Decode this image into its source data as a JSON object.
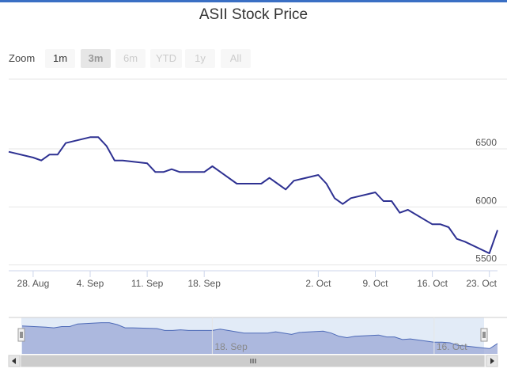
{
  "title": "ASII Stock Price",
  "zoom": {
    "label": "Zoom",
    "buttons": [
      "1m",
      "3m",
      "6m",
      "YTD",
      "1y",
      "All"
    ],
    "selected": "3m"
  },
  "colors": {
    "line": "#2e3192",
    "navigator_fill": "#9aa7d6",
    "navigator_line": "#4d6ab8",
    "navigator_mask": "#dbe6f5",
    "accent": "#3a6fc4"
  },
  "chart_data": {
    "type": "line",
    "title": "ASII Stock Price",
    "xlabel": "",
    "ylabel": "",
    "ylim": [
      5450,
      7100
    ],
    "yticks": [
      5500,
      6000,
      6500
    ],
    "ytick_labels": [
      "5500",
      "6000",
      "6500"
    ],
    "xticks": [
      "2017-08-28",
      "2017-09-04",
      "2017-09-11",
      "2017-09-18",
      "2017-10-02",
      "2017-10-09",
      "2017-10-16",
      "2017-10-23"
    ],
    "xtick_labels": [
      "28. Aug",
      "4. Sep",
      "11. Sep",
      "18. Sep",
      "2. Oct",
      "9. Oct",
      "16. Oct",
      "23. Oct"
    ],
    "grid": true,
    "legend": "none",
    "series": [
      {
        "x": [
          "2017-08-25",
          "2017-08-28",
          "2017-08-29",
          "2017-08-30",
          "2017-08-31",
          "2017-09-01",
          "2017-09-04",
          "2017-09-05",
          "2017-09-06",
          "2017-09-07",
          "2017-09-08",
          "2017-09-11",
          "2017-09-12",
          "2017-09-13",
          "2017-09-14",
          "2017-09-15",
          "2017-09-18",
          "2017-09-19",
          "2017-09-20",
          "2017-09-22",
          "2017-09-25",
          "2017-09-26",
          "2017-09-27",
          "2017-09-28",
          "2017-09-29",
          "2017-10-02",
          "2017-10-03",
          "2017-10-04",
          "2017-10-05",
          "2017-10-06",
          "2017-10-09",
          "2017-10-10",
          "2017-10-11",
          "2017-10-12",
          "2017-10-13",
          "2017-10-16",
          "2017-10-17",
          "2017-10-18",
          "2017-10-19",
          "2017-10-20",
          "2017-10-23",
          "2017-10-24"
        ],
        "values": [
          6475,
          6425,
          6400,
          6450,
          6450,
          6550,
          6600,
          6600,
          6525,
          6400,
          6400,
          6375,
          6300,
          6300,
          6325,
          6300,
          6300,
          6350,
          6300,
          6200,
          6200,
          6250,
          6200,
          6150,
          6225,
          6275,
          6200,
          6075,
          6025,
          6075,
          6125,
          6050,
          6050,
          5950,
          5975,
          5850,
          5850,
          5825,
          5725,
          5700,
          5600,
          5800
        ]
      }
    ],
    "navigator": {
      "xtick_labels": [
        "18. Sep",
        "16. Oct"
      ]
    }
  }
}
